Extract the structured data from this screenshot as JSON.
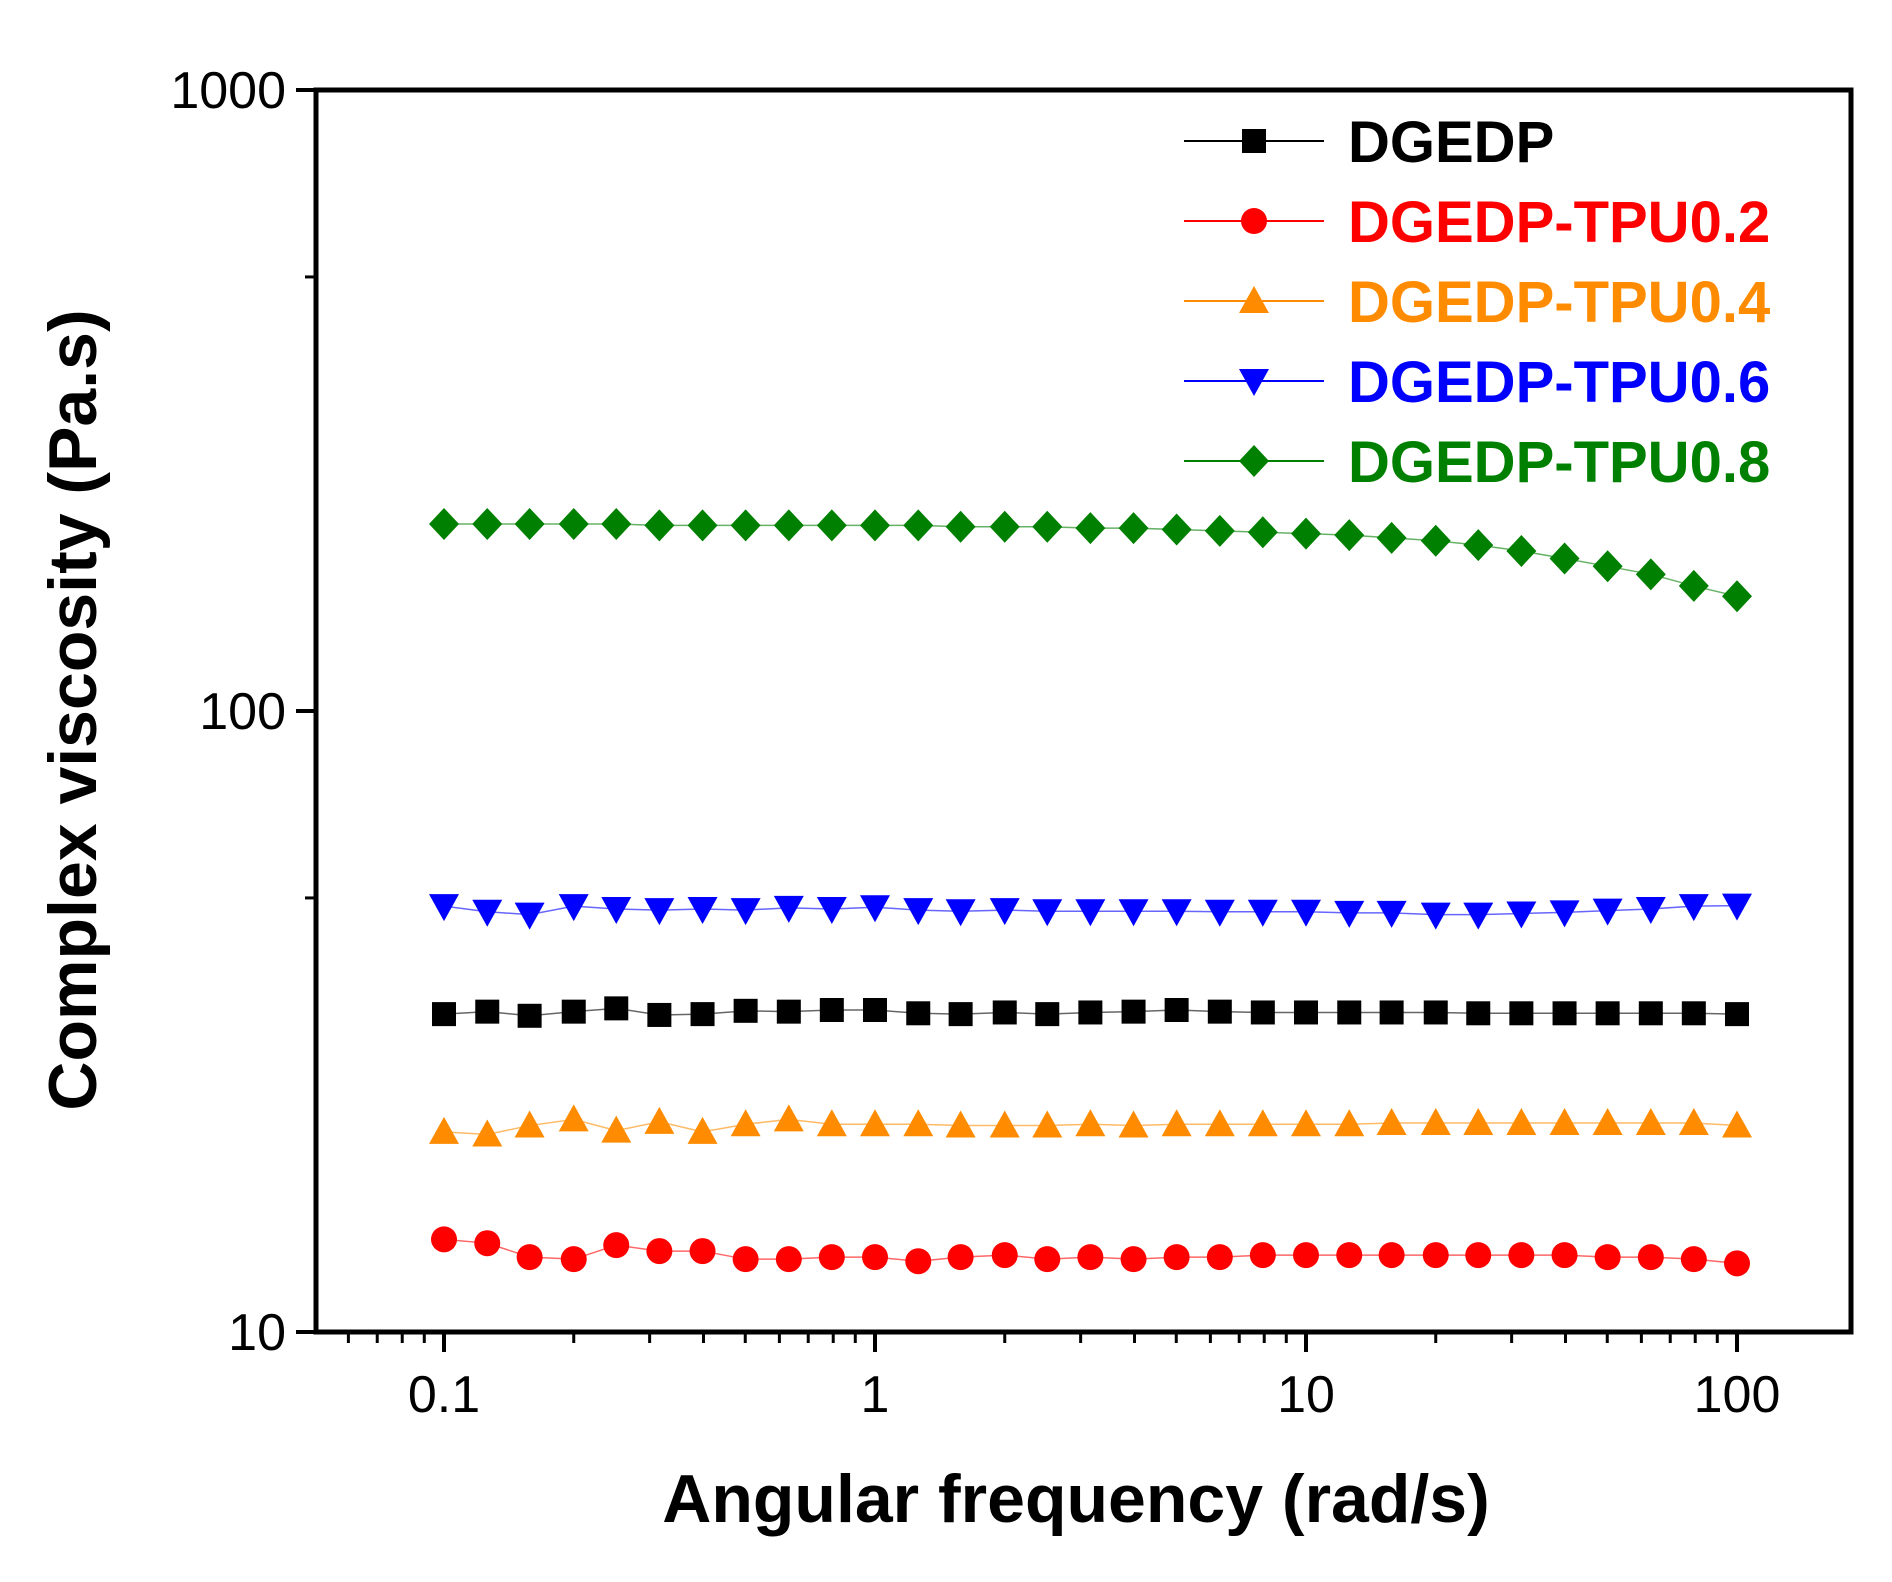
{
  "chart_data": {
    "type": "scatter",
    "title": "",
    "xlabel": "Angular frequency (rad/s)",
    "ylabel": "Complex viscosity (Pa.s)",
    "xscale": "log",
    "yscale": "log",
    "xlim": [
      0.055,
      200
    ],
    "ylim": [
      10,
      1000
    ],
    "xticks": [
      0.1,
      1,
      10,
      100
    ],
    "xtick_labels": [
      "0.1",
      "1",
      "10",
      "100"
    ],
    "yticks": [
      10,
      100,
      1000
    ],
    "ytick_labels": [
      "10",
      "100",
      "1000"
    ],
    "legend_position": "top-right",
    "x": [
      0.1,
      0.126,
      0.158,
      0.2,
      0.251,
      0.316,
      0.398,
      0.501,
      0.631,
      0.794,
      1,
      1.26,
      1.58,
      2,
      2.51,
      3.16,
      3.98,
      5.01,
      6.31,
      7.94,
      10,
      12.6,
      15.8,
      20,
      25.1,
      31.6,
      39.8,
      50.1,
      63.1,
      79.4,
      100
    ],
    "series": [
      {
        "name": "DGEDP",
        "color": "#000000",
        "marker": "square",
        "values": [
          32.5,
          32.8,
          32.3,
          32.8,
          33.2,
          32.4,
          32.5,
          32.9,
          32.8,
          33.0,
          33.0,
          32.6,
          32.5,
          32.7,
          32.5,
          32.7,
          32.8,
          33.0,
          32.8,
          32.7,
          32.7,
          32.7,
          32.7,
          32.7,
          32.6,
          32.6,
          32.6,
          32.6,
          32.6,
          32.6,
          32.5
        ]
      },
      {
        "name": "DGEDP-TPU0.2",
        "color": "#ff0000",
        "marker": "circle",
        "values": [
          14.1,
          13.9,
          13.2,
          13.1,
          13.8,
          13.5,
          13.5,
          13.1,
          13.1,
          13.2,
          13.2,
          13.0,
          13.2,
          13.3,
          13.1,
          13.2,
          13.1,
          13.2,
          13.2,
          13.3,
          13.3,
          13.3,
          13.3,
          13.3,
          13.3,
          13.3,
          13.3,
          13.2,
          13.2,
          13.1,
          12.9
        ]
      },
      {
        "name": "DGEDP-TPU0.4",
        "color": "#ff8c00",
        "marker": "triangle-up",
        "values": [
          21.0,
          20.8,
          21.5,
          22.0,
          21.1,
          21.8,
          21.0,
          21.6,
          22.0,
          21.6,
          21.6,
          21.6,
          21.5,
          21.5,
          21.5,
          21.6,
          21.5,
          21.6,
          21.6,
          21.6,
          21.6,
          21.6,
          21.7,
          21.7,
          21.7,
          21.7,
          21.7,
          21.7,
          21.7,
          21.7,
          21.5
        ]
      },
      {
        "name": "DGEDP-TPU0.6",
        "color": "#0000ff",
        "marker": "triangle-down",
        "values": [
          48.5,
          47.5,
          47.0,
          48.5,
          48.0,
          47.8,
          48.0,
          47.8,
          48.2,
          48.0,
          48.3,
          47.8,
          47.6,
          47.8,
          47.6,
          47.6,
          47.6,
          47.6,
          47.5,
          47.5,
          47.5,
          47.3,
          47.3,
          47.0,
          47.0,
          47.2,
          47.4,
          47.7,
          48.0,
          48.5,
          48.6
        ]
      },
      {
        "name": "DGEDP-TPU0.8",
        "color": "#008000",
        "marker": "diamond",
        "values": [
          200,
          200,
          200,
          200,
          200,
          199,
          199,
          199,
          199,
          199,
          199,
          199,
          198,
          198,
          198,
          197,
          197,
          196,
          195,
          194,
          193,
          192,
          190,
          188,
          185,
          181,
          176,
          171,
          166,
          159,
          153
        ]
      }
    ]
  }
}
